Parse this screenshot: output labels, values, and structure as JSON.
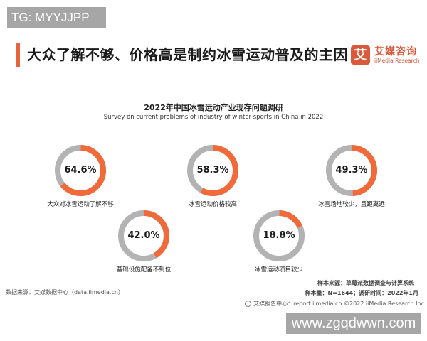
{
  "watermarks": {
    "top": "TG: MYYJJPP",
    "bottom": "www.zgqdwwn.com"
  },
  "header": {
    "title": "大众了解不够、价格高是制约冰雪运动普及的主因",
    "brand_logo_char": "艾",
    "brand_name_cn": "艾媒咨询",
    "brand_name_en": "iiMedia Research"
  },
  "colors": {
    "accent": "#e8643c",
    "donut_fill": "#f26a3a",
    "donut_rest": "#b3b3b3",
    "brand": "#d9593a"
  },
  "chart_data": {
    "type": "pie",
    "subtype": "donut-multiples",
    "title": "2022年中国冰雪运动产业现存问题调研",
    "subtitle": "Survey on current problems of industry of winter sports in China in 2022",
    "categories": [
      "大众对冰雪运动了解不够",
      "冰雪运动价格较高",
      "冰雪场地较少，且距离远",
      "基础设施配备不到位",
      "冰雪运动项目较少"
    ],
    "values": [
      64.6,
      58.3,
      49.3,
      42.0,
      18.8
    ],
    "unit": "%",
    "items": [
      {
        "label": "大众对冰雪运动了解不够",
        "value": 64.6,
        "display": "64.6%"
      },
      {
        "label": "冰雪运动价格较高",
        "value": 58.3,
        "display": "58.3%"
      },
      {
        "label": "冰雪场地较少，且距离远",
        "value": 49.3,
        "display": "49.3%"
      },
      {
        "label": "基础设施配备不到位",
        "value": 42.0,
        "display": "42.0%"
      },
      {
        "label": "冰雪运动项目较少",
        "value": 18.8,
        "display": "18.8%"
      }
    ]
  },
  "notes": {
    "data_source": "数据来源：艾媒数据中心（data.iimedia.cn）",
    "sample_source": "样本来源：草莓派数据调查与计算系统",
    "sample_size": "样本量：N=1644；调研时间：2022年1月",
    "footer": "艾媒报告中心：report.iimedia.cn   ©2022  iiMedia Research  Inc"
  }
}
